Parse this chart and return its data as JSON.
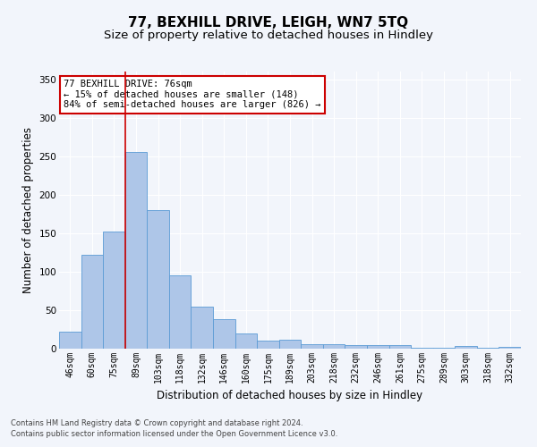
{
  "title1": "77, BEXHILL DRIVE, LEIGH, WN7 5TQ",
  "title2": "Size of property relative to detached houses in Hindley",
  "xlabel": "Distribution of detached houses by size in Hindley",
  "ylabel": "Number of detached properties",
  "categories": [
    "46sqm",
    "60sqm",
    "75sqm",
    "89sqm",
    "103sqm",
    "118sqm",
    "132sqm",
    "146sqm",
    "160sqm",
    "175sqm",
    "189sqm",
    "203sqm",
    "218sqm",
    "232sqm",
    "246sqm",
    "261sqm",
    "275sqm",
    "289sqm",
    "303sqm",
    "318sqm",
    "332sqm"
  ],
  "values": [
    22,
    122,
    152,
    255,
    180,
    95,
    55,
    38,
    20,
    10,
    12,
    6,
    6,
    5,
    5,
    5,
    1,
    1,
    3,
    1,
    2
  ],
  "bar_color": "#aec6e8",
  "bar_edge_color": "#5b9bd5",
  "vline_x": 2.5,
  "annotation_title": "77 BEXHILL DRIVE: 76sqm",
  "annotation_line1": "← 15% of detached houses are smaller (148)",
  "annotation_line2": "84% of semi-detached houses are larger (826) →",
  "annotation_box_color": "#ffffff",
  "annotation_box_edge": "#cc0000",
  "vline_color": "#cc0000",
  "ylim": [
    0,
    360
  ],
  "yticks": [
    0,
    50,
    100,
    150,
    200,
    250,
    300,
    350
  ],
  "footer1": "Contains HM Land Registry data © Crown copyright and database right 2024.",
  "footer2": "Contains public sector information licensed under the Open Government Licence v3.0.",
  "bg_color": "#f2f5fb",
  "plot_bg_color": "#f2f5fb",
  "grid_color": "#ffffff",
  "title_fontsize": 11,
  "subtitle_fontsize": 9.5,
  "tick_fontsize": 7,
  "ylabel_fontsize": 8.5,
  "xlabel_fontsize": 8.5,
  "footer_fontsize": 6,
  "ann_fontsize": 7.5
}
